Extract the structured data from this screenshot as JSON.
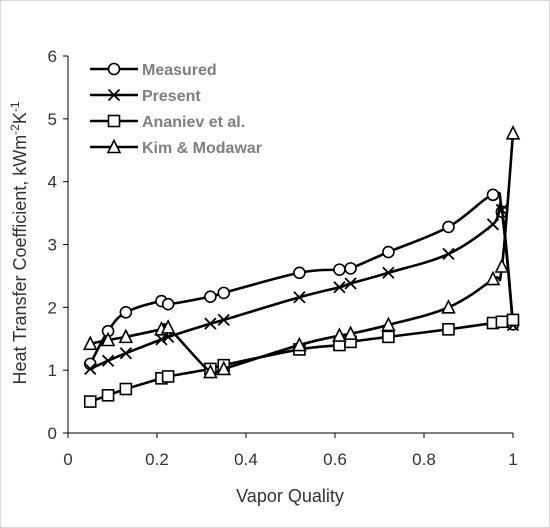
{
  "chart_data": {
    "type": "line",
    "xlabel": "Vapor Quality",
    "ylabel": "Heat Transfer Coefficient, kWm-2K-1",
    "ylabel_parts": [
      {
        "text": "Heat Transfer Coefficient, kWm",
        "sup": false
      },
      {
        "text": "-2",
        "sup": true
      },
      {
        "text": "K",
        "sup": false
      },
      {
        "text": "-1",
        "sup": true
      }
    ],
    "xlim": [
      0,
      1
    ],
    "ylim": [
      0,
      6
    ],
    "xticks": [
      "0",
      "0.2",
      "0.4",
      "0.6",
      "0.8",
      "1"
    ],
    "yticks": [
      "0",
      "1",
      "2",
      "3",
      "4",
      "5",
      "6"
    ],
    "legend_position": "top-left",
    "grid": false,
    "series": [
      {
        "name": "Measured",
        "marker": "circle",
        "x": [
          0.05,
          0.09,
          0.13,
          0.21,
          0.225,
          0.32,
          0.35,
          0.52,
          0.61,
          0.635,
          0.72,
          0.855,
          0.955,
          0.975,
          1.0
        ],
        "y": [
          1.1,
          1.62,
          1.92,
          2.1,
          2.05,
          2.17,
          2.23,
          2.55,
          2.6,
          2.62,
          2.88,
          3.28,
          3.79,
          3.52,
          1.73
        ]
      },
      {
        "name": "Present",
        "marker": "x",
        "x": [
          0.05,
          0.09,
          0.13,
          0.21,
          0.225,
          0.32,
          0.35,
          0.52,
          0.61,
          0.635,
          0.72,
          0.855,
          0.955,
          0.975,
          1.0
        ],
        "y": [
          1.02,
          1.15,
          1.27,
          1.49,
          1.53,
          1.74,
          1.8,
          2.16,
          2.32,
          2.38,
          2.55,
          2.85,
          3.32,
          3.55,
          1.72
        ]
      },
      {
        "name": "Ananiev et al.",
        "marker": "square",
        "x": [
          0.05,
          0.09,
          0.13,
          0.21,
          0.225,
          0.32,
          0.35,
          0.52,
          0.61,
          0.635,
          0.72,
          0.855,
          0.955,
          0.975,
          1.0
        ],
        "y": [
          0.5,
          0.6,
          0.7,
          0.87,
          0.9,
          1.02,
          1.08,
          1.33,
          1.4,
          1.45,
          1.53,
          1.65,
          1.75,
          1.77,
          1.8
        ]
      },
      {
        "name": "Kim & Modawar",
        "marker": "triangle",
        "x": [
          0.05,
          0.09,
          0.13,
          0.21,
          0.225,
          0.32,
          0.35,
          0.52,
          0.61,
          0.635,
          0.72,
          0.855,
          0.955,
          0.975,
          1.0
        ],
        "y": [
          1.42,
          1.48,
          1.53,
          1.65,
          1.68,
          0.97,
          1.02,
          1.4,
          1.55,
          1.58,
          1.72,
          2.0,
          2.45,
          2.65,
          4.77
        ]
      }
    ]
  }
}
